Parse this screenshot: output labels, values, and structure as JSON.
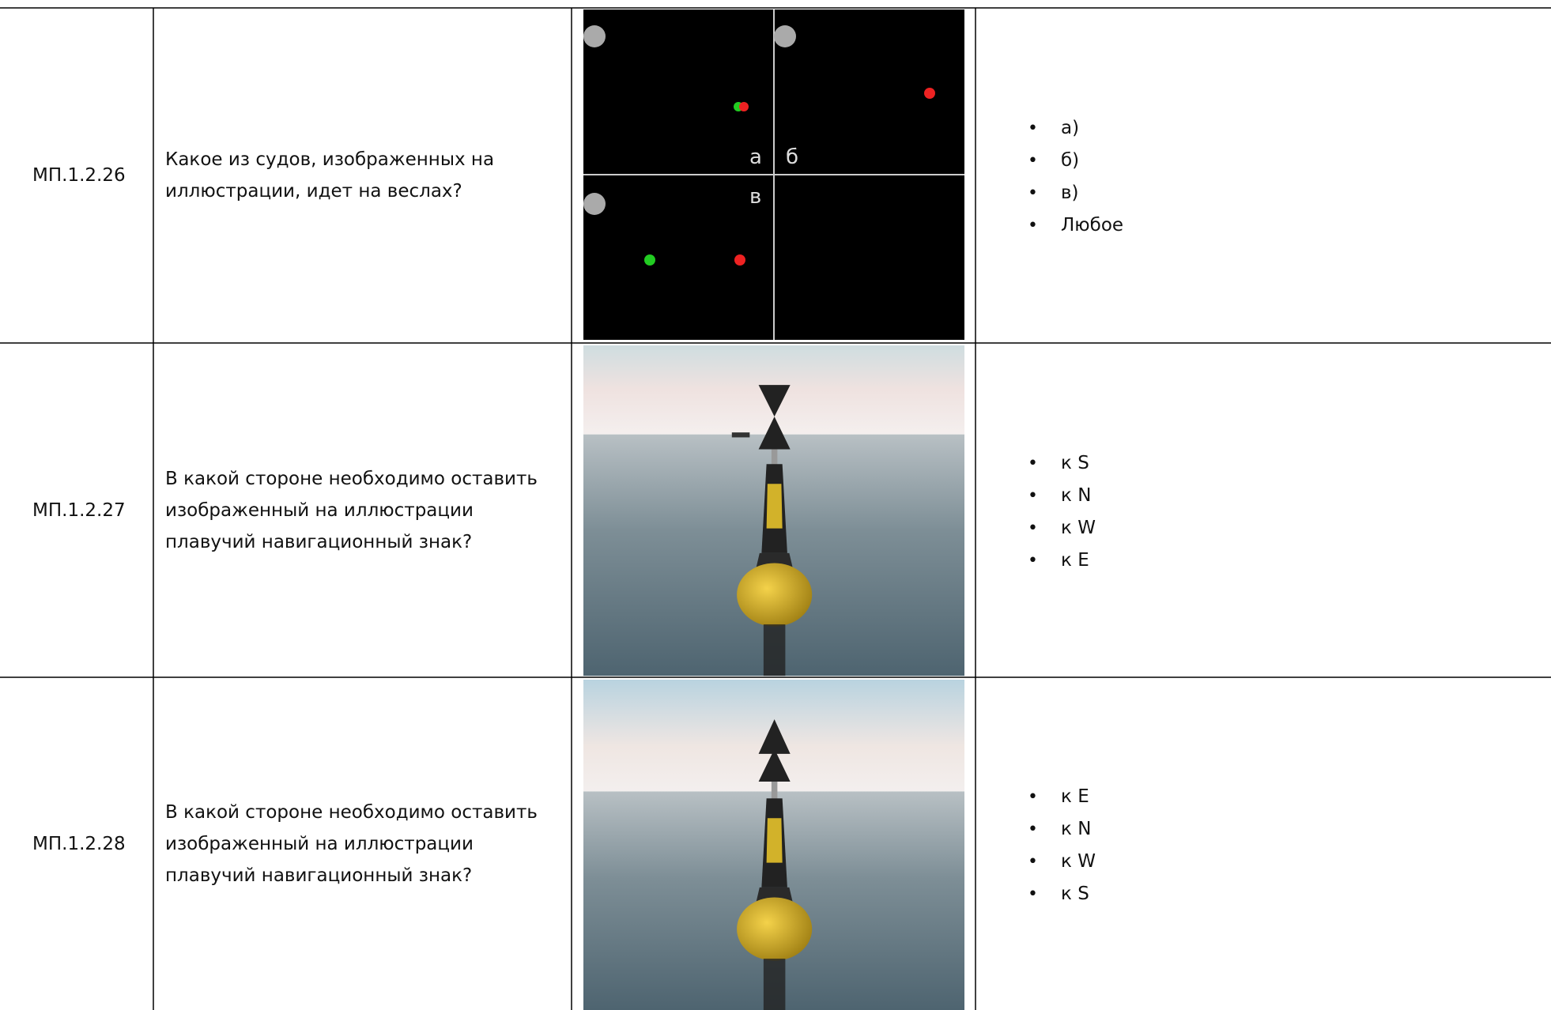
{
  "table": {
    "rows": [
      {
        "code": "МП.1.2.26",
        "question": [
          "Какое из судов, изображенных на",
          "иллюстрации, идет на веслах?"
        ],
        "image_labels": [
          "а",
          "б",
          "в"
        ],
        "answers": [
          "а)",
          "б)",
          "в)",
          "Любое"
        ]
      },
      {
        "code": "МП.1.2.27",
        "question": [
          "В какой стороне необходимо оставить",
          "изображенный на иллюстрации",
          "плавучий навигационный знак?"
        ],
        "answers": [
          "к S",
          "к N",
          "к W",
          "к E"
        ]
      },
      {
        "code": "МП.1.2.28",
        "question": [
          "В какой стороне необходимо оставить",
          "изображенный на иллюстрации",
          "плавучий навигационный знак?"
        ],
        "answers": [
          "к E",
          "к N",
          "к W",
          "к S"
        ]
      }
    ]
  }
}
